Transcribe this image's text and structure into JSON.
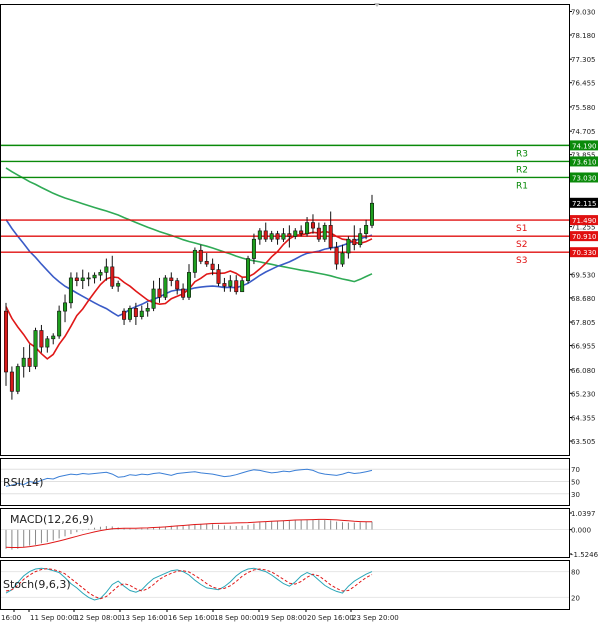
{
  "chart_data": {
    "type": "candlestick",
    "price_axis": {
      "ylim": [
        63.0,
        79.3
      ],
      "ticks": [
        "79.030",
        "78.180",
        "77.305",
        "76.455",
        "75.580",
        "74.705",
        "73.855",
        "73.030",
        "71.255",
        "69.530",
        "68.680",
        "67.805",
        "66.955",
        "66.080",
        "65.230",
        "64.355",
        "63.505"
      ]
    },
    "last_price": "72.115",
    "levels": [
      {
        "name": "R3",
        "value": "74.190",
        "color": "#0a8a0a"
      },
      {
        "name": "R2",
        "value": "73.610",
        "color": "#0a8a0a"
      },
      {
        "name": "R1",
        "value": "73.030",
        "color": "#0a8a0a"
      },
      {
        "name": "S1",
        "value": "71.490",
        "color": "#e01010"
      },
      {
        "name": "S2",
        "value": "70.910",
        "color": "#e01010"
      },
      {
        "name": "S3",
        "value": "70.330",
        "color": "#e01010"
      }
    ],
    "x_labels": [
      "16:00",
      "11 Sep 00:00",
      "12 Sep 08:00",
      "13 Sep 16:00",
      "16 Sep 16:00",
      "18 Sep 00:00",
      "19 Sep 08:00",
      "20 Sep 16:00",
      "23 Sep 20:00"
    ],
    "candles": [
      [
        68.2,
        68.5,
        65.5,
        66.0
      ],
      [
        66.0,
        66.2,
        65.0,
        65.3
      ],
      [
        65.3,
        66.3,
        65.2,
        66.2
      ],
      [
        66.2,
        66.9,
        65.8,
        66.5
      ],
      [
        66.5,
        67.0,
        66.0,
        66.2
      ],
      [
        66.2,
        67.6,
        66.1,
        67.5
      ],
      [
        67.5,
        67.7,
        66.7,
        66.9
      ],
      [
        66.9,
        67.3,
        66.7,
        67.2
      ],
      [
        67.2,
        67.4,
        67.0,
        67.3
      ],
      [
        67.3,
        68.4,
        67.2,
        68.2
      ],
      [
        68.2,
        68.8,
        67.8,
        68.5
      ],
      [
        68.5,
        69.6,
        68.3,
        69.4
      ],
      [
        69.4,
        69.6,
        69.1,
        69.3
      ],
      [
        69.3,
        69.7,
        69.0,
        69.4
      ],
      [
        69.4,
        69.6,
        69.1,
        69.4
      ],
      [
        69.4,
        69.6,
        69.2,
        69.5
      ],
      [
        69.5,
        69.7,
        69.3,
        69.6
      ],
      [
        69.6,
        70.1,
        69.3,
        69.8
      ],
      [
        69.8,
        70.2,
        69.0,
        69.1
      ],
      [
        69.1,
        69.3,
        68.9,
        69.2
      ],
      [
        68.2,
        68.3,
        67.7,
        67.9
      ],
      [
        67.9,
        68.4,
        67.8,
        68.3
      ],
      [
        68.3,
        68.5,
        67.7,
        68.0
      ],
      [
        68.0,
        68.4,
        67.9,
        68.2
      ],
      [
        68.2,
        68.5,
        68.0,
        68.3
      ],
      [
        68.3,
        69.3,
        68.2,
        69.0
      ],
      [
        69.0,
        69.4,
        68.5,
        68.7
      ],
      [
        68.7,
        69.5,
        68.6,
        69.4
      ],
      [
        69.4,
        69.6,
        69.1,
        69.3
      ],
      [
        69.3,
        69.4,
        68.8,
        69.0
      ],
      [
        69.0,
        69.2,
        68.6,
        68.7
      ],
      [
        68.7,
        69.9,
        68.6,
        69.6
      ],
      [
        69.6,
        70.5,
        69.4,
        70.4
      ],
      [
        70.4,
        70.6,
        69.9,
        70.0
      ],
      [
        70.0,
        70.3,
        69.8,
        69.9
      ],
      [
        69.9,
        70.1,
        69.5,
        69.7
      ],
      [
        69.7,
        69.9,
        69.1,
        69.2
      ],
      [
        69.2,
        69.4,
        68.9,
        69.1
      ],
      [
        69.1,
        69.5,
        68.9,
        69.3
      ],
      [
        69.3,
        69.5,
        68.8,
        68.9
      ],
      [
        68.9,
        69.4,
        68.9,
        69.3
      ],
      [
        69.3,
        70.2,
        69.2,
        70.1
      ],
      [
        70.1,
        71.0,
        69.9,
        70.8
      ],
      [
        70.8,
        71.2,
        70.6,
        71.1
      ],
      [
        71.1,
        71.4,
        70.7,
        70.8
      ],
      [
        70.8,
        71.1,
        70.7,
        71.0
      ],
      [
        71.0,
        71.1,
        70.6,
        70.8
      ],
      [
        70.8,
        71.2,
        70.7,
        71.0
      ],
      [
        71.0,
        71.3,
        70.5,
        70.9
      ],
      [
        70.9,
        71.2,
        70.8,
        71.1
      ],
      [
        71.1,
        71.3,
        70.9,
        71.0
      ],
      [
        71.0,
        71.6,
        70.9,
        71.4
      ],
      [
        71.4,
        71.7,
        71.0,
        71.2
      ],
      [
        71.2,
        71.4,
        70.7,
        70.8
      ],
      [
        70.8,
        71.4,
        70.7,
        71.3
      ],
      [
        71.3,
        71.8,
        70.4,
        70.5
      ],
      [
        70.5,
        70.7,
        69.7,
        69.9
      ],
      [
        69.9,
        70.6,
        69.8,
        70.3
      ],
      [
        70.3,
        70.9,
        70.1,
        70.8
      ],
      [
        70.8,
        71.3,
        70.4,
        70.6
      ],
      [
        70.6,
        71.2,
        70.5,
        71.0
      ],
      [
        71.0,
        71.5,
        70.8,
        71.3
      ],
      [
        71.3,
        72.4,
        71.2,
        72.1
      ]
    ],
    "indicators": [
      {
        "label": "RSI(14)",
        "axis_ticks": [
          "70",
          "50",
          "30"
        ],
        "series": [
          42,
          44,
          47,
          45,
          50,
          48,
          52,
          55,
          54,
          58,
          60,
          62,
          61,
          63,
          62,
          63,
          64,
          65,
          62,
          57,
          58,
          61,
          60,
          62,
          61,
          63,
          64,
          62,
          60,
          63,
          64,
          65,
          66,
          64,
          63,
          62,
          60,
          58,
          59,
          61,
          64,
          67,
          69,
          68,
          66,
          64,
          65,
          67,
          66,
          68,
          69,
          70,
          68,
          64,
          62,
          61,
          60,
          62,
          65,
          63,
          64,
          66,
          68
        ]
      },
      {
        "label": "MACD(12,26,9)",
        "axis_ticks": [
          "1.0397",
          "0.000",
          "-1.5246"
        ],
        "histogram": [
          -1.2,
          -1.25,
          -1.2,
          -1.1,
          -1.0,
          -0.95,
          -0.85,
          -0.78,
          -0.68,
          -0.55,
          -0.42,
          -0.28,
          -0.16,
          -0.05,
          0.05,
          0.12,
          0.18,
          0.22,
          0.2,
          0.14,
          0.08,
          0.06,
          0.04,
          0.06,
          0.08,
          0.14,
          0.18,
          0.2,
          0.24,
          0.24,
          0.22,
          0.26,
          0.32,
          0.36,
          0.36,
          0.34,
          0.3,
          0.26,
          0.24,
          0.22,
          0.24,
          0.3,
          0.38,
          0.46,
          0.5,
          0.52,
          0.54,
          0.55,
          0.56,
          0.58,
          0.6,
          0.62,
          0.64,
          0.62,
          0.6,
          0.58,
          0.5,
          0.46,
          0.44,
          0.44,
          0.46,
          0.48,
          0.5
        ],
        "signal": [
          -1.1,
          -1.12,
          -1.12,
          -1.1,
          -1.06,
          -1.01,
          -0.95,
          -0.88,
          -0.8,
          -0.71,
          -0.62,
          -0.52,
          -0.42,
          -0.32,
          -0.23,
          -0.14,
          -0.06,
          0.0,
          0.05,
          0.07,
          0.08,
          0.09,
          0.09,
          0.1,
          0.11,
          0.13,
          0.15,
          0.17,
          0.2,
          0.23,
          0.26,
          0.29,
          0.32,
          0.34,
          0.36,
          0.38,
          0.39,
          0.4,
          0.41,
          0.42,
          0.43,
          0.44,
          0.46,
          0.48,
          0.5,
          0.52,
          0.54,
          0.56,
          0.58,
          0.6,
          0.61,
          0.62,
          0.63,
          0.64,
          0.64,
          0.63,
          0.61,
          0.58,
          0.55,
          0.52,
          0.5,
          0.49,
          0.49
        ]
      },
      {
        "label": "Stoch(9,6,3)",
        "axis_ticks": [
          "80",
          "20"
        ],
        "k": [
          30,
          38,
          55,
          70,
          80,
          86,
          88,
          86,
          82,
          78,
          66,
          52,
          42,
          30,
          20,
          14,
          18,
          32,
          50,
          58,
          46,
          36,
          32,
          38,
          52,
          64,
          70,
          76,
          82,
          84,
          80,
          72,
          60,
          50,
          42,
          40,
          38,
          45,
          56,
          70,
          80,
          86,
          88,
          84,
          80,
          72,
          62,
          52,
          46,
          56,
          70,
          78,
          72,
          60,
          48,
          40,
          34,
          30,
          46,
          58,
          66,
          74,
          80
        ],
        "d": [
          35,
          38,
          48,
          62,
          72,
          80,
          85,
          87,
          85,
          81,
          75,
          64,
          53,
          42,
          31,
          22,
          17,
          22,
          34,
          46,
          52,
          48,
          40,
          35,
          40,
          50,
          62,
          70,
          76,
          81,
          82,
          79,
          71,
          62,
          52,
          44,
          40,
          41,
          47,
          57,
          69,
          78,
          84,
          86,
          84,
          79,
          71,
          62,
          53,
          51,
          57,
          67,
          74,
          70,
          60,
          49,
          41,
          35,
          36,
          45,
          56,
          66,
          73
        ]
      }
    ]
  }
}
